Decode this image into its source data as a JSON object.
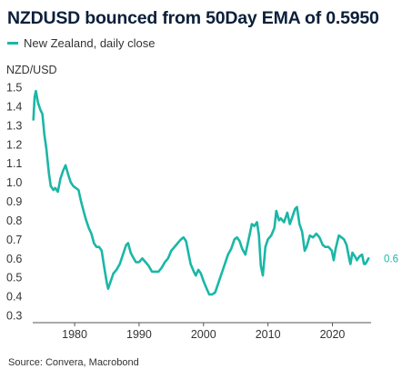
{
  "chart_data": {
    "type": "line",
    "title": "NZDUSD bounced from 50Day EMA of 0.5950",
    "ylabel": "NZD/USD",
    "xlabel": "",
    "source": "Source: Convera, Macrobond",
    "grid": false,
    "legend_position": "top-left",
    "xlim": [
      1973.5,
      2026
    ],
    "ylim": [
      0.3,
      1.5
    ],
    "x_ticks": [
      1980,
      1990,
      2000,
      2010,
      2020
    ],
    "y_ticks": [
      0.3,
      0.4,
      0.5,
      0.6,
      0.7,
      0.8,
      0.9,
      1.0,
      1.1,
      1.2,
      1.3,
      1.4,
      1.5
    ],
    "y_tick_labels": [
      "0.3",
      "0.4",
      "0.5",
      "0.6",
      "0.7",
      "0.8",
      "0.9",
      "1.0",
      "1.1",
      "1.2",
      "1.3",
      "1.4",
      "1.5"
    ],
    "end_label": "0.6",
    "series": [
      {
        "name": "New Zealand, daily close",
        "color": "#1ab7a6",
        "points": [
          [
            1973.6,
            1.33
          ],
          [
            1973.8,
            1.45
          ],
          [
            1974.0,
            1.48
          ],
          [
            1974.3,
            1.42
          ],
          [
            1974.7,
            1.38
          ],
          [
            1975.0,
            1.36
          ],
          [
            1975.3,
            1.25
          ],
          [
            1975.6,
            1.18
          ],
          [
            1976.0,
            1.05
          ],
          [
            1976.3,
            0.98
          ],
          [
            1976.7,
            0.96
          ],
          [
            1977.0,
            0.97
          ],
          [
            1977.4,
            0.95
          ],
          [
            1977.8,
            1.02
          ],
          [
            1978.2,
            1.06
          ],
          [
            1978.6,
            1.09
          ],
          [
            1979.0,
            1.04
          ],
          [
            1979.4,
            1.0
          ],
          [
            1979.8,
            0.98
          ],
          [
            1980.2,
            0.97
          ],
          [
            1980.6,
            0.96
          ],
          [
            1981.0,
            0.9
          ],
          [
            1981.3,
            0.86
          ],
          [
            1981.7,
            0.81
          ],
          [
            1982.2,
            0.76
          ],
          [
            1982.6,
            0.73
          ],
          [
            1983.0,
            0.68
          ],
          [
            1983.4,
            0.66
          ],
          [
            1983.8,
            0.66
          ],
          [
            1984.2,
            0.64
          ],
          [
            1984.6,
            0.55
          ],
          [
            1985.0,
            0.47
          ],
          [
            1985.2,
            0.44
          ],
          [
            1985.6,
            0.48
          ],
          [
            1986.0,
            0.52
          ],
          [
            1986.5,
            0.54
          ],
          [
            1987.0,
            0.57
          ],
          [
            1987.5,
            0.62
          ],
          [
            1988.0,
            0.67
          ],
          [
            1988.3,
            0.68
          ],
          [
            1988.7,
            0.63
          ],
          [
            1989.0,
            0.61
          ],
          [
            1989.5,
            0.58
          ],
          [
            1990.0,
            0.58
          ],
          [
            1990.5,
            0.6
          ],
          [
            1991.0,
            0.58
          ],
          [
            1991.5,
            0.56
          ],
          [
            1992.0,
            0.53
          ],
          [
            1992.5,
            0.53
          ],
          [
            1993.0,
            0.53
          ],
          [
            1993.5,
            0.55
          ],
          [
            1994.0,
            0.58
          ],
          [
            1994.5,
            0.6
          ],
          [
            1995.0,
            0.64
          ],
          [
            1995.5,
            0.66
          ],
          [
            1996.0,
            0.68
          ],
          [
            1996.5,
            0.7
          ],
          [
            1996.9,
            0.71
          ],
          [
            1997.3,
            0.69
          ],
          [
            1997.7,
            0.62
          ],
          [
            1998.0,
            0.57
          ],
          [
            1998.5,
            0.53
          ],
          [
            1998.8,
            0.51
          ],
          [
            1999.2,
            0.54
          ],
          [
            1999.6,
            0.52
          ],
          [
            2000.0,
            0.48
          ],
          [
            2000.5,
            0.44
          ],
          [
            2000.9,
            0.41
          ],
          [
            2001.3,
            0.41
          ],
          [
            2001.8,
            0.42
          ],
          [
            2002.3,
            0.47
          ],
          [
            2002.8,
            0.52
          ],
          [
            2003.3,
            0.57
          ],
          [
            2003.8,
            0.62
          ],
          [
            2004.3,
            0.65
          ],
          [
            2004.8,
            0.7
          ],
          [
            2005.2,
            0.71
          ],
          [
            2005.6,
            0.69
          ],
          [
            2006.0,
            0.65
          ],
          [
            2006.5,
            0.62
          ],
          [
            2007.0,
            0.7
          ],
          [
            2007.5,
            0.78
          ],
          [
            2007.9,
            0.77
          ],
          [
            2008.3,
            0.79
          ],
          [
            2008.6,
            0.72
          ],
          [
            2008.9,
            0.56
          ],
          [
            2009.2,
            0.51
          ],
          [
            2009.6,
            0.66
          ],
          [
            2010.0,
            0.7
          ],
          [
            2010.5,
            0.72
          ],
          [
            2011.0,
            0.76
          ],
          [
            2011.3,
            0.85
          ],
          [
            2011.7,
            0.8
          ],
          [
            2012.0,
            0.81
          ],
          [
            2012.5,
            0.79
          ],
          [
            2013.0,
            0.84
          ],
          [
            2013.4,
            0.78
          ],
          [
            2013.8,
            0.82
          ],
          [
            2014.2,
            0.86
          ],
          [
            2014.5,
            0.87
          ],
          [
            2014.9,
            0.78
          ],
          [
            2015.3,
            0.74
          ],
          [
            2015.7,
            0.64
          ],
          [
            2016.0,
            0.66
          ],
          [
            2016.5,
            0.72
          ],
          [
            2017.0,
            0.71
          ],
          [
            2017.5,
            0.73
          ],
          [
            2018.0,
            0.71
          ],
          [
            2018.5,
            0.67
          ],
          [
            2018.9,
            0.66
          ],
          [
            2019.4,
            0.66
          ],
          [
            2019.9,
            0.64
          ],
          [
            2020.2,
            0.59
          ],
          [
            2020.5,
            0.65
          ],
          [
            2021.0,
            0.72
          ],
          [
            2021.4,
            0.71
          ],
          [
            2021.8,
            0.7
          ],
          [
            2022.2,
            0.67
          ],
          [
            2022.6,
            0.6
          ],
          [
            2022.8,
            0.57
          ],
          [
            2023.1,
            0.63
          ],
          [
            2023.5,
            0.61
          ],
          [
            2023.8,
            0.59
          ],
          [
            2024.2,
            0.61
          ],
          [
            2024.6,
            0.62
          ],
          [
            2024.9,
            0.57
          ],
          [
            2025.1,
            0.57
          ],
          [
            2025.3,
            0.58
          ],
          [
            2025.6,
            0.6
          ]
        ]
      }
    ]
  }
}
